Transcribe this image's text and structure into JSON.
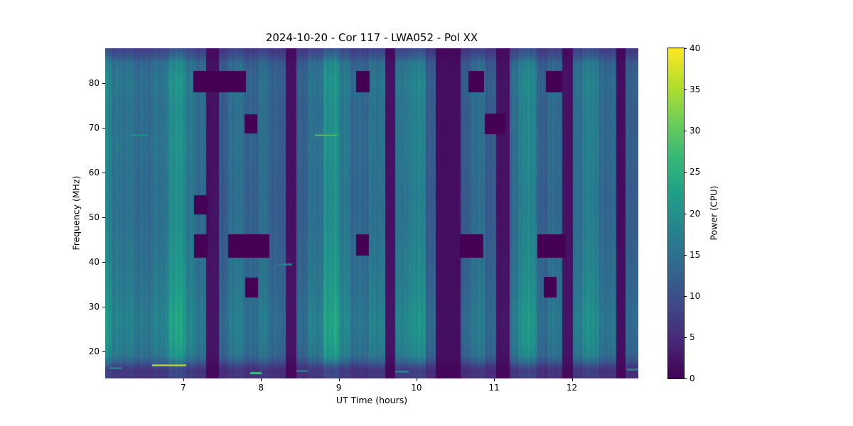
{
  "chart_data": {
    "type": "heatmap",
    "title": "2024-10-20 - Cor 117 - LWA052 - Pol XX",
    "xlabel": "UT Time (hours)",
    "ylabel": "Frequency (MHz)",
    "x_range": [
      5.995,
      12.855
    ],
    "y_range": [
      13.9,
      87.7
    ],
    "x_ticks": [
      7,
      8,
      9,
      10,
      11,
      12
    ],
    "y_ticks": [
      20,
      30,
      40,
      50,
      60,
      70,
      80
    ],
    "colorbar": {
      "label": "Power (CPU)",
      "min": 0,
      "max": 40,
      "ticks": [
        0,
        5,
        10,
        15,
        20,
        25,
        30,
        35,
        40
      ]
    },
    "colormap": [
      "#440154",
      "#482878",
      "#3e4989",
      "#31688e",
      "#26828e",
      "#1f9e89",
      "#35b779",
      "#6ece58",
      "#b5de2b",
      "#fde725"
    ],
    "background": {
      "time_segments": [
        [
          5.995,
          6.08,
          19
        ],
        [
          6.08,
          6.38,
          16
        ],
        [
          6.38,
          6.61,
          14.5
        ],
        [
          6.61,
          6.81,
          16
        ],
        [
          6.81,
          7.03,
          21
        ],
        [
          7.03,
          7.16,
          16.5
        ],
        [
          7.16,
          7.29,
          14.5
        ],
        [
          7.29,
          7.46,
          2
        ],
        [
          7.46,
          7.58,
          12
        ],
        [
          7.58,
          7.79,
          15.5
        ],
        [
          7.79,
          7.96,
          13
        ],
        [
          7.96,
          8.11,
          15
        ],
        [
          8.11,
          8.32,
          12.5
        ],
        [
          8.32,
          8.46,
          2
        ],
        [
          8.46,
          8.59,
          12.5
        ],
        [
          8.59,
          8.8,
          15.5
        ],
        [
          8.8,
          9.0,
          21
        ],
        [
          9.0,
          9.14,
          17
        ],
        [
          9.14,
          9.39,
          14
        ],
        [
          9.39,
          9.6,
          16
        ],
        [
          9.6,
          9.73,
          2
        ],
        [
          9.73,
          9.92,
          16.5
        ],
        [
          9.92,
          10.12,
          18.5
        ],
        [
          10.12,
          10.25,
          12
        ],
        [
          10.25,
          10.57,
          1.5
        ],
        [
          10.57,
          10.7,
          12
        ],
        [
          10.7,
          10.89,
          15
        ],
        [
          10.89,
          11.03,
          12
        ],
        [
          11.03,
          11.2,
          2
        ],
        [
          11.2,
          11.32,
          15
        ],
        [
          11.32,
          11.55,
          19
        ],
        [
          11.55,
          11.68,
          12.5
        ],
        [
          11.68,
          11.88,
          14.5
        ],
        [
          11.88,
          12.01,
          2
        ],
        [
          12.01,
          12.13,
          15
        ],
        [
          12.13,
          12.34,
          18
        ],
        [
          12.34,
          12.57,
          14
        ],
        [
          12.57,
          12.69,
          1.5
        ],
        [
          12.69,
          12.855,
          12.5
        ]
      ],
      "freq_profile": [
        [
          13.9,
          0.35
        ],
        [
          14.5,
          0.45
        ],
        [
          15.5,
          0.4
        ],
        [
          16.5,
          0.5
        ],
        [
          17.5,
          0.75
        ],
        [
          19,
          1.0
        ],
        [
          22,
          1.08
        ],
        [
          27,
          1.12
        ],
        [
          33,
          1.05
        ],
        [
          40,
          1.0
        ],
        [
          48,
          0.95
        ],
        [
          55,
          0.93
        ],
        [
          65,
          0.97
        ],
        [
          75,
          0.95
        ],
        [
          80,
          1.0
        ],
        [
          84.5,
          0.9
        ],
        [
          86,
          0.65
        ],
        [
          87.7,
          0.5
        ]
      ]
    },
    "flagged_blocks": [
      [
        7.13,
        7.8,
        78,
        82.6
      ],
      [
        9.23,
        9.39,
        78,
        82.5
      ],
      [
        10.67,
        10.87,
        78,
        82.5
      ],
      [
        11.67,
        11.87,
        78,
        82.5
      ],
      [
        7.79,
        7.95,
        68.7,
        72.8
      ],
      [
        10.88,
        11.14,
        68.5,
        73
      ],
      [
        7.14,
        7.31,
        50.6,
        54.7
      ],
      [
        7.14,
        7.31,
        41,
        46
      ],
      [
        7.58,
        8.1,
        41,
        46
      ],
      [
        9.23,
        9.38,
        41.5,
        46
      ],
      [
        10.56,
        10.86,
        41,
        46
      ],
      [
        11.56,
        11.92,
        41,
        46
      ],
      [
        7.8,
        7.96,
        32.1,
        36.4
      ],
      [
        11.64,
        11.8,
        32,
        36.5
      ]
    ],
    "streaks": [
      [
        6.6,
        7.03,
        16.9,
        38
      ],
      [
        7.87,
        8.0,
        15.2,
        33
      ],
      [
        6.05,
        6.2,
        16.3,
        20
      ],
      [
        8.46,
        8.6,
        15.6,
        18
      ],
      [
        9.73,
        9.9,
        15.5,
        20
      ],
      [
        12.7,
        12.85,
        16.0,
        20
      ],
      [
        6.33,
        6.55,
        68.4,
        22
      ],
      [
        8.7,
        8.97,
        68.3,
        30
      ],
      [
        8.22,
        8.4,
        39.5,
        19
      ]
    ]
  }
}
